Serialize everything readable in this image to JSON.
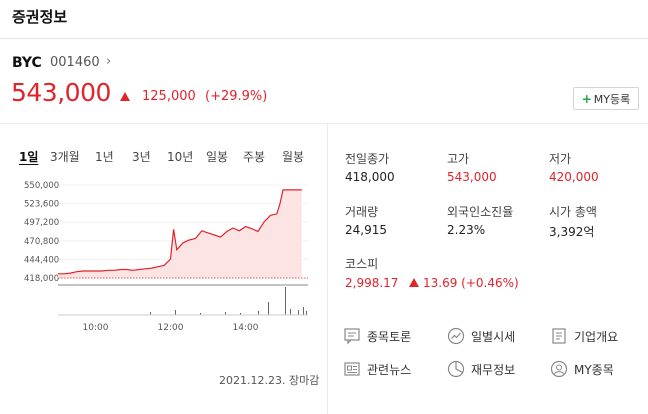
{
  "header": {
    "title": "증권정보"
  },
  "stock": {
    "name": "BYC",
    "code": "001460",
    "chevron": "›",
    "price": "543,000",
    "change": "125,000",
    "change_pct": "(+29.9%)",
    "direction_icon": "up-triangle-icon"
  },
  "my_button": {
    "plus": "+",
    "label": "MY등록"
  },
  "tabs": [
    {
      "label": "1일",
      "active": true
    },
    {
      "label": "3개월",
      "active": false
    },
    {
      "label": "1년",
      "active": false
    },
    {
      "label": "3년",
      "active": false
    },
    {
      "label": "10년",
      "active": false
    },
    {
      "label": "일봉",
      "active": false
    },
    {
      "label": "주봉",
      "active": false
    },
    {
      "label": "월봉",
      "active": false
    }
  ],
  "chart_data": {
    "type": "area",
    "y_ticks": [
      "550,000",
      "523,600",
      "497,200",
      "470,800",
      "444,400",
      "418,000"
    ],
    "x_ticks": [
      "10:00",
      "12:00",
      "14:00"
    ],
    "ylim": [
      418000,
      550000
    ],
    "x": [
      "09:00",
      "09:10",
      "09:20",
      "09:30",
      "09:40",
      "09:50",
      "10:00",
      "10:10",
      "10:20",
      "10:30",
      "10:40",
      "10:50",
      "11:00",
      "11:10",
      "11:20",
      "11:30",
      "11:40",
      "11:50",
      "12:00",
      "12:05",
      "12:10",
      "12:15",
      "12:20",
      "12:30",
      "12:40",
      "12:50",
      "13:00",
      "13:10",
      "13:20",
      "13:30",
      "13:40",
      "13:50",
      "14:00",
      "14:10",
      "14:20",
      "14:30",
      "14:40",
      "14:50",
      "14:55",
      "15:00",
      "15:10",
      "15:20",
      "15:30"
    ],
    "values": [
      424000,
      424000,
      425000,
      427000,
      428000,
      428000,
      428000,
      428000,
      429000,
      429000,
      430000,
      430000,
      429000,
      430000,
      431000,
      432000,
      434000,
      436000,
      445000,
      487000,
      458000,
      463000,
      468000,
      472000,
      474000,
      485000,
      482000,
      479000,
      476000,
      484000,
      489000,
      485000,
      491000,
      488000,
      484000,
      498000,
      507000,
      509000,
      523000,
      543000,
      543000,
      543000,
      543000
    ],
    "baseline": 418000
  },
  "stats": [
    {
      "label": "전일종가",
      "value": "418,000",
      "red": false
    },
    {
      "label": "고가",
      "value": "543,000",
      "red": true
    },
    {
      "label": "저가",
      "value": "420,000",
      "red": true
    },
    {
      "label": "거래량",
      "value": "24,915",
      "red": false
    },
    {
      "label": "외국인소진율",
      "value": "2.23%",
      "red": false
    },
    {
      "label": "시가 총액",
      "value": "3,392억",
      "red": false
    }
  ],
  "kospi": {
    "label": "코스피",
    "value": "2,998.17",
    "change": "13.69 (+0.46%)"
  },
  "links": [
    {
      "label": "종목토론",
      "icon": "discussion-icon"
    },
    {
      "label": "일별시세",
      "icon": "trend-icon"
    },
    {
      "label": "기업개요",
      "icon": "company-icon"
    },
    {
      "label": "관련뉴스",
      "icon": "news-icon"
    },
    {
      "label": "재무정보",
      "icon": "pie-chart-icon"
    },
    {
      "label": "MY종목",
      "icon": "user-icon"
    }
  ],
  "footer": {
    "date": "2021.12.23. 장마감"
  },
  "colors": {
    "up": "#e2232a",
    "area_fill": "#fde4e4",
    "baseline": "#e2232a"
  }
}
